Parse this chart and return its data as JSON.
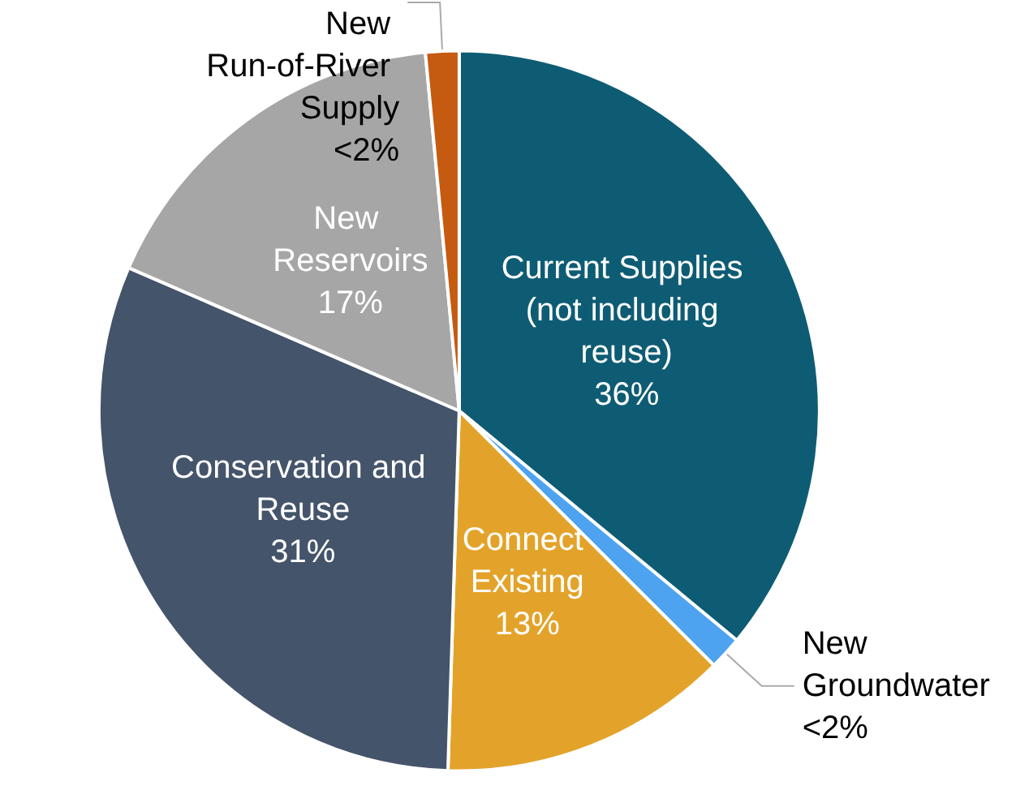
{
  "chart_data": {
    "type": "pie",
    "categories": [
      "Current Supplies (not including reuse)",
      "New Groundwater",
      "Connect Existing",
      "Conservation and Reuse",
      "New Reservoirs",
      "New Run-of-River Supply"
    ],
    "values": [
      36,
      1.5,
      13,
      31,
      17,
      1.5
    ],
    "value_labels": [
      "36%",
      "<2%",
      "13%",
      "31%",
      "17%",
      "<2%"
    ],
    "colors": [
      "#0e5c74",
      "#4da3f0",
      "#e3a32a",
      "#44546a",
      "#a6a6a6",
      "#c55a11"
    ],
    "legend": false
  }
}
